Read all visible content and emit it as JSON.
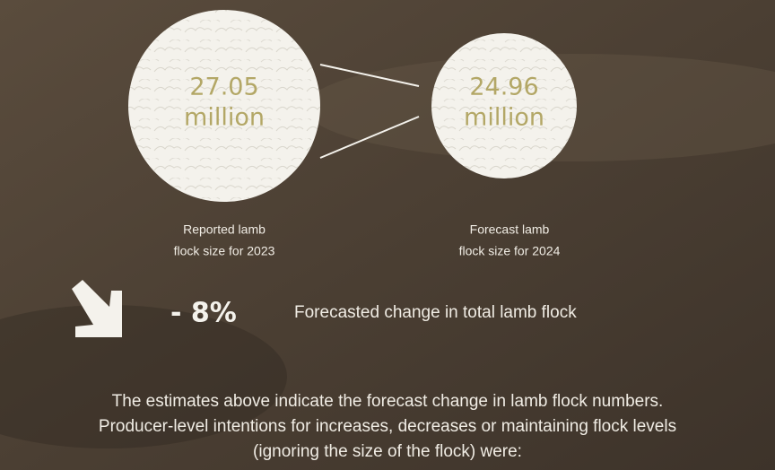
{
  "circles": [
    {
      "value": "27.05",
      "unit": "million",
      "caption": [
        "Reported lamb",
        "flock size for 2023"
      ]
    },
    {
      "value": "24.96",
      "unit": "million",
      "caption": [
        "Forecast lamb",
        "flock size for 2024"
      ]
    }
  ],
  "change": {
    "value": "- 8%",
    "label": "Forecasted change in total lamb flock"
  },
  "paragraph": [
    "The estimates above indicate the forecast change in lamb flock numbers.",
    "Producer-level intentions for increases, decreases or maintaining flock levels",
    "(ignoring the size of the flock) were:"
  ]
}
